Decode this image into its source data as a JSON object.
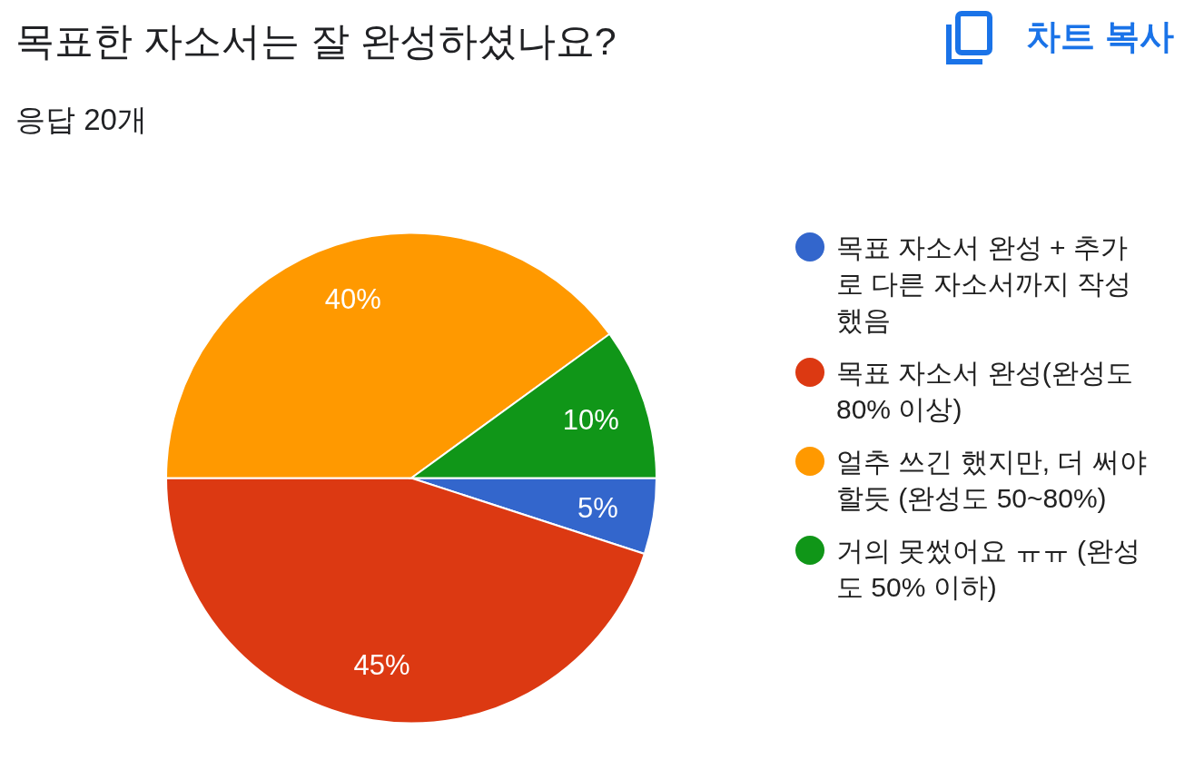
{
  "chart_data": {
    "type": "pie",
    "title": "목표한 자소서는 잘 완성하셨나요?",
    "subtitle": "응답 20개",
    "categories": [
      "목표 자소서 완성 + 추가로 다른 자소서까지 작성했음",
      "목표 자소서 완성(완성도 80% 이상)",
      "얼추 쓰긴 했지만, 더 써야할듯 (완성도 50~80%)",
      "거의 못썼어요 ㅠㅠ (완성도 50% 이하)"
    ],
    "values": [
      5,
      45,
      40,
      10
    ],
    "colors": [
      "#3366cc",
      "#dc3912",
      "#ff9900",
      "#109618"
    ],
    "value_labels": [
      "5%",
      "45%",
      "40%",
      "10%"
    ],
    "legend": "right",
    "annotations": [
      "차트 복사"
    ]
  }
}
